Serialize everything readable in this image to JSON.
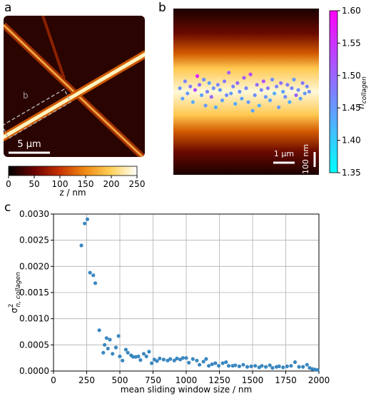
{
  "chart_data": [
    {
      "type": "image",
      "panel_label": "a",
      "box_label": "b",
      "scale_bar": "5 µm",
      "colorbar": {
        "label": "z / nm",
        "clim": [
          0,
          250
        ],
        "ticks": [
          0,
          50,
          100,
          150,
          200,
          250
        ],
        "colors": [
          "#000000",
          "#6a0000",
          "#c83200",
          "#f08c14",
          "#ffd25a",
          "#ffffff"
        ]
      }
    },
    {
      "type": "heatmap-scatter",
      "panel_label": "b",
      "scale_bar_x": "1 µm",
      "scale_bar_y": "100 nm",
      "xlim": [
        0,
        6700
      ],
      "ylim": [
        -480,
        480
      ],
      "x": [
        300,
        420,
        540,
        650,
        780,
        900,
        1000,
        1100,
        1200,
        1300,
        1400,
        1480,
        1560,
        1650,
        1750,
        1850,
        1950,
        2050,
        2150,
        2250,
        2350,
        2450,
        2550,
        2650,
        2750,
        2850,
        2950,
        3050,
        3150,
        3250,
        3350,
        3450,
        3550,
        3650,
        3750,
        3850,
        3950,
        4050,
        4150,
        4250,
        4350,
        4450,
        4550,
        4650,
        4750,
        4850,
        4950,
        5050,
        5150,
        5250,
        5350,
        5450,
        5550,
        5650,
        5750,
        5850,
        5950,
        6050,
        6150,
        6250
      ],
      "values": [
        20,
        -40,
        60,
        -10,
        30,
        -60,
        10,
        90,
        40,
        -20,
        70,
        -80,
        0,
        50,
        -30,
        20,
        -90,
        40,
        10,
        -50,
        60,
        -20,
        110,
        -10,
        30,
        -70,
        50,
        0,
        -40,
        80,
        20,
        -60,
        100,
        -110,
        -20,
        40,
        -80,
        10,
        60,
        -30,
        20,
        -50,
        70,
        -10,
        30,
        -90,
        50,
        0,
        -30,
        40,
        -60,
        20,
        70,
        -20,
        10,
        -40,
        50,
        -10,
        30,
        0
      ],
      "n_values": [
        1.46,
        1.44,
        1.47,
        1.45,
        1.48,
        1.43,
        1.52,
        1.57,
        1.49,
        1.44,
        1.46,
        1.45,
        1.47,
        1.44,
        1.5,
        1.46,
        1.43,
        1.47,
        1.45,
        1.44,
        1.48,
        1.46,
        1.5,
        1.45,
        1.47,
        1.43,
        1.49,
        1.46,
        1.44,
        1.51,
        1.47,
        1.45,
        1.53,
        1.44,
        1.46,
        1.49,
        1.43,
        1.47,
        1.52,
        1.45,
        1.48,
        1.44,
        1.46,
        1.43,
        1.47,
        1.45,
        1.49,
        1.44,
        1.46,
        1.48,
        1.43,
        1.47,
        1.45,
        1.5,
        1.46,
        1.44,
        1.48,
        1.45,
        1.47,
        1.46
      ],
      "colorbar": {
        "label": {
          "base": "n",
          "sub": "collagen"
        },
        "clim": [
          1.35,
          1.6
        ],
        "colors": [
          "#00ffff",
          "#ff00ff"
        ],
        "ticks": [
          {
            "value": 1.35,
            "label": "1.35"
          },
          {
            "value": 1.4,
            "label": "1.40"
          },
          {
            "value": 1.45,
            "label": "1.45"
          },
          {
            "value": 1.5,
            "label": "1.50"
          },
          {
            "value": 1.55,
            "label": "1.55"
          },
          {
            "value": 1.6,
            "label": "1.60"
          }
        ]
      }
    },
    {
      "type": "scatter",
      "panel_label": "c",
      "xlabel": "mean sliding window size / nm",
      "ylabel": {
        "base": "σ",
        "sup": "2",
        "sub": "n, collagen"
      },
      "color": "#3a87c0",
      "grid": true,
      "xlim": [
        0,
        2000
      ],
      "ylim": [
        0,
        0.003
      ],
      "xticks": [
        0,
        250,
        500,
        750,
        1000,
        1250,
        1500,
        1750,
        2000
      ],
      "yticks": [
        {
          "value": 0,
          "label": "0.0000"
        },
        {
          "value": 0.0005,
          "label": "0.0005"
        },
        {
          "value": 0.001,
          "label": "0.0010"
        },
        {
          "value": 0.0015,
          "label": "0.0015"
        },
        {
          "value": 0.002,
          "label": "0.0020"
        },
        {
          "value": 0.0025,
          "label": "0.0025"
        },
        {
          "value": 0.003,
          "label": "0.0030"
        }
      ],
      "x": [
        210,
        235,
        255,
        275,
        300,
        315,
        345,
        375,
        385,
        400,
        410,
        425,
        445,
        470,
        490,
        500,
        520,
        545,
        560,
        585,
        600,
        620,
        640,
        655,
        680,
        700,
        720,
        740,
        760,
        780,
        800,
        830,
        860,
        880,
        910,
        930,
        955,
        975,
        1000,
        1020,
        1050,
        1080,
        1100,
        1130,
        1150,
        1170,
        1195,
        1220,
        1245,
        1275,
        1300,
        1320,
        1350,
        1370,
        1400,
        1430,
        1460,
        1490,
        1520,
        1550,
        1570,
        1600,
        1630,
        1650,
        1680,
        1700,
        1730,
        1760,
        1790,
        1820,
        1850,
        1880,
        1910,
        1930,
        1950,
        1970,
        1990
      ],
      "values": [
        0.0024,
        0.00282,
        0.0029,
        0.00188,
        0.00183,
        0.00168,
        0.00078,
        0.00035,
        0.0005,
        0.00063,
        0.00043,
        0.0006,
        0.00033,
        0.00045,
        0.00067,
        0.00028,
        0.0002,
        0.00041,
        0.00035,
        0.0003,
        0.00027,
        0.00027,
        0.00028,
        0.00021,
        0.00033,
        0.00028,
        0.00037,
        0.00015,
        0.00022,
        0.00019,
        0.00024,
        0.00022,
        0.0002,
        0.00023,
        0.0002,
        0.00024,
        0.00022,
        0.00025,
        0.00025,
        0.00016,
        0.00023,
        0.0002,
        0.00012,
        0.00018,
        0.00023,
        0.0001,
        0.00013,
        0.00015,
        0.0001,
        0.00015,
        0.00017,
        0.0001,
        0.0001,
        0.00011,
        9e-05,
        0.00012,
        8e-05,
        9e-05,
        0.0001,
        7e-05,
        0.0001,
        8e-05,
        0.00011,
        6e-05,
        8e-05,
        9e-05,
        7e-05,
        9e-05,
        0.0001,
        0.00017,
        8e-05,
        8e-05,
        0.00012,
        6e-05,
        4e-05,
        3e-05,
        2e-05
      ]
    }
  ]
}
